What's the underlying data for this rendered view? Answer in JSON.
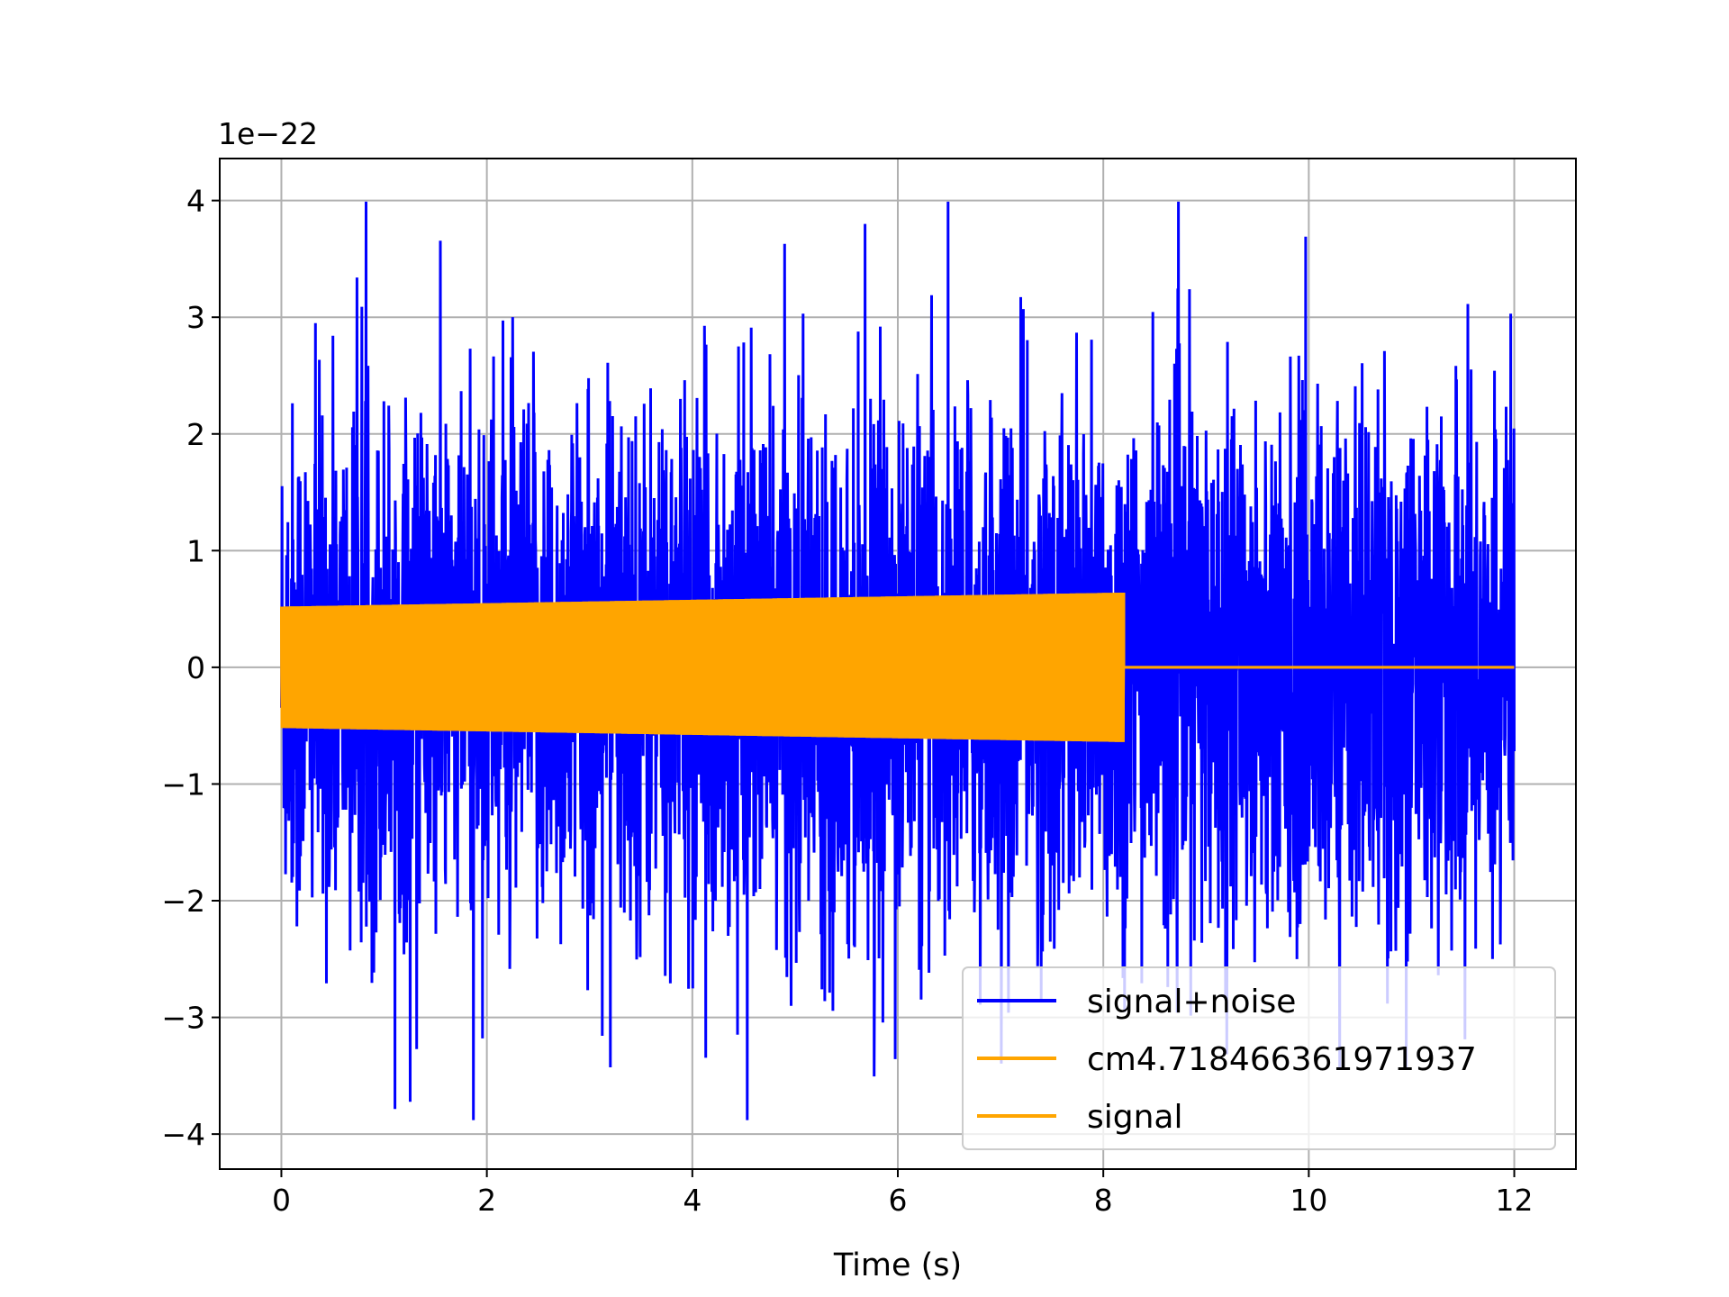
{
  "chart_data": {
    "type": "line",
    "title": "",
    "xlabel": "Time (s)",
    "ylabel": "",
    "y_offset_label": "1e−22",
    "xlim": [
      -0.6,
      12.6
    ],
    "ylim": [
      -4.3,
      4.36
    ],
    "x_ticks": [
      0,
      2,
      4,
      6,
      8,
      10,
      12
    ],
    "x_tick_labels": [
      "0",
      "2",
      "4",
      "6",
      "8",
      "10",
      "12"
    ],
    "y_ticks": [
      -4,
      -3,
      -2,
      -1,
      0,
      1,
      2,
      3,
      4
    ],
    "y_tick_labels": [
      "−4",
      "−3",
      "−2",
      "−1",
      "0",
      "1",
      "2",
      "3",
      "4"
    ],
    "grid": true,
    "legend_position": "lower-right",
    "series": [
      {
        "name": "signal+noise",
        "color": "#0000ff",
        "description_kind": "noise",
        "t_start": 0,
        "t_end": 12,
        "typical_amplitude": 1.8,
        "peak_max": 3.99,
        "peak_min": -3.88
      },
      {
        "name": "cm4.718466361971937",
        "color": "#ffa500",
        "description_kind": "oscillation",
        "t_start": 0,
        "t_end": 8.2,
        "amplitude_start": 0.52,
        "amplitude_end": 0.64,
        "after_end_value": 0,
        "after_end_until": 12
      },
      {
        "name": "signal",
        "color": "#ffa500",
        "description_kind": "oscillation",
        "t_start": 0,
        "t_end": 8.2,
        "amplitude_start": 0.52,
        "amplitude_end": 0.64,
        "after_end_value": 0,
        "after_end_until": 12
      }
    ]
  }
}
